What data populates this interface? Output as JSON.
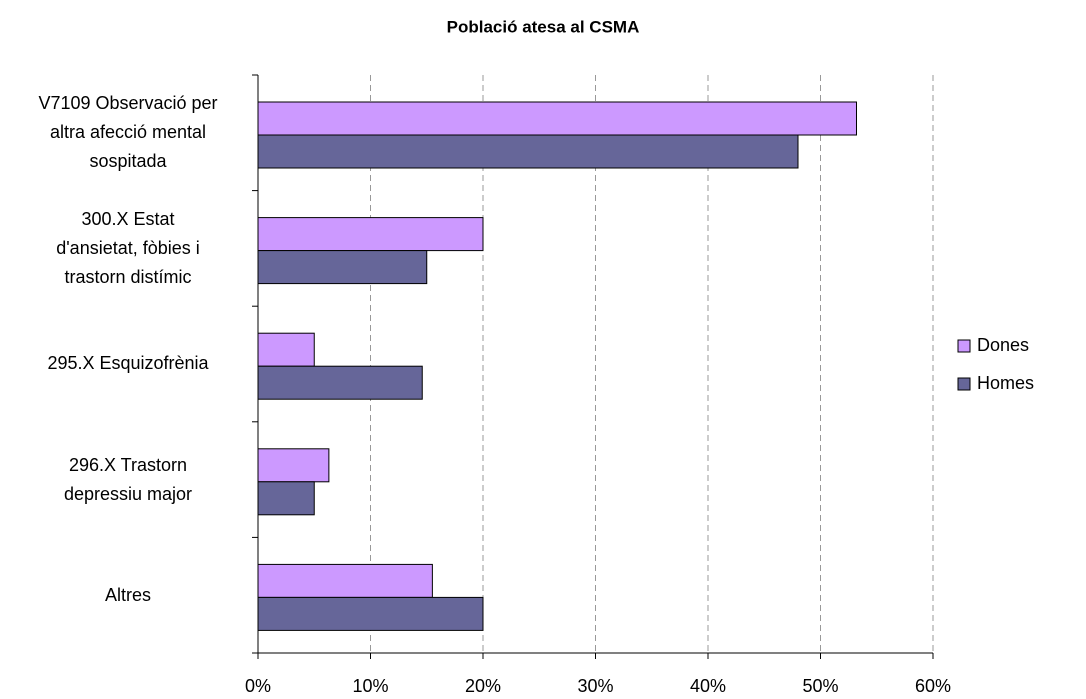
{
  "chart_data": {
    "type": "hbar",
    "title": "Població atesa al CSMA",
    "categories": [
      "V7109 Observació per\naltra afecció mental\nsospitada",
      "300.X Estat\nd'ansietat, fòbies i\ntrastorn distímic",
      "295.X Esquizofrènia",
      "296.X Trastorn\ndepressiu major",
      "Altres"
    ],
    "series": [
      {
        "name": "Dones",
        "color": "#cc99ff",
        "values": [
          53.2,
          20,
          5,
          6.3,
          15.5
        ]
      },
      {
        "name": "Homes",
        "color": "#666699",
        "values": [
          48,
          15,
          14.6,
          5,
          20
        ]
      }
    ],
    "xlim": [
      0,
      60
    ],
    "xticks": [
      {
        "value": 0,
        "label": "0%"
      },
      {
        "value": 10,
        "label": "10%"
      },
      {
        "value": 20,
        "label": "20%"
      },
      {
        "value": 30,
        "label": "30%"
      },
      {
        "value": 40,
        "label": "40%"
      },
      {
        "value": 50,
        "label": "50%"
      },
      {
        "value": 60,
        "label": "60%"
      }
    ],
    "grid": true,
    "legend": "right"
  }
}
